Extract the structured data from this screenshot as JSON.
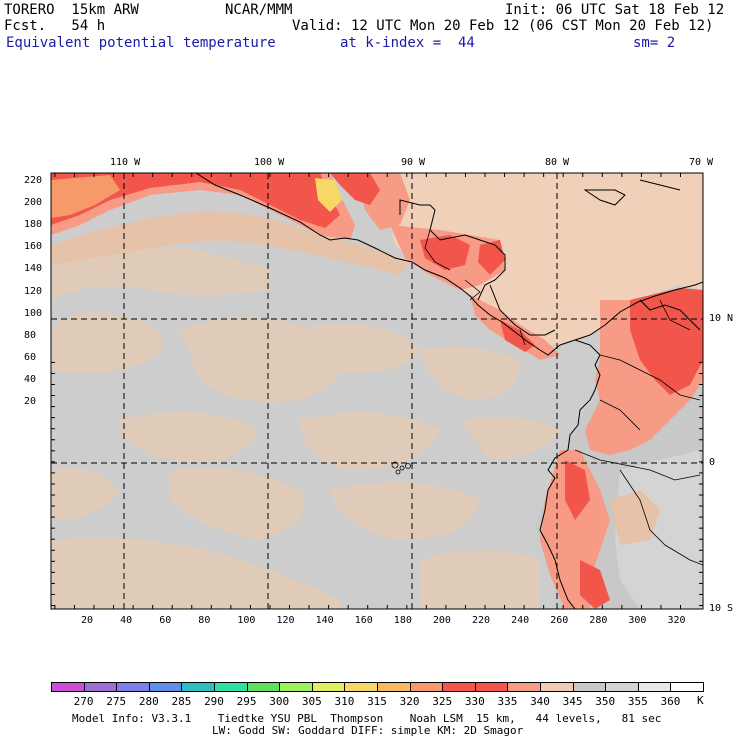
{
  "header": {
    "model": "TORERO  15km ARW",
    "org": "NCAR/MMM",
    "init": "Init: 06 UTC Sat 18 Feb 12",
    "fcst": "Fcst.   54 h",
    "valid": "Valid: 12 UTC Mon 20 Feb 12 (06 CST Mon 20 Feb 12)",
    "field": "Equivalent potential temperature",
    "level": "at k-index =  44",
    "smooth": "sm= 2"
  },
  "map": {
    "top_lon_labels": [
      "110 W",
      "100 W",
      "90 W",
      "80 W",
      "70 W"
    ],
    "right_lat_labels": [
      "10 N",
      "0",
      "10 S"
    ],
    "y_ticks": [
      "220",
      "200",
      "180",
      "160",
      "140",
      "120",
      "100",
      "80",
      "60",
      "40",
      "20"
    ],
    "x_ticks": [
      "20",
      "40",
      "60",
      "80",
      "100",
      "120",
      "140",
      "160",
      "180",
      "200",
      "220",
      "240",
      "260",
      "280",
      "300",
      "320"
    ]
  },
  "colorbar": {
    "unit": "K",
    "labels": [
      "270",
      "275",
      "280",
      "285",
      "290",
      "295",
      "300",
      "305",
      "310",
      "315",
      "320",
      "325",
      "330",
      "335",
      "340",
      "345",
      "350",
      "355",
      "360"
    ],
    "colors": [
      "#c84fd6",
      "#9e6fd6",
      "#7f7fe8",
      "#5f8fe8",
      "#2fbfbf",
      "#2fdf9f",
      "#5fdf5f",
      "#9fef5f",
      "#dfef5f",
      "#f7d766",
      "#f7b866",
      "#f79a6a",
      "#f2564b",
      "#f2564b",
      "#f79a86",
      "#f2cbb0",
      "#c8c8c8",
      "#d4d4d4",
      "#e8e8e8",
      "#ffffff"
    ]
  },
  "footer": {
    "line1": "Model Info: V3.3.1    Tiedtke YSU PBL  Thompson    Noah LSM  15 km,   44 levels,   81 sec",
    "line2": "LW: Godd SW: Goddard DIFF: simple KM: 2D Smagor"
  }
}
